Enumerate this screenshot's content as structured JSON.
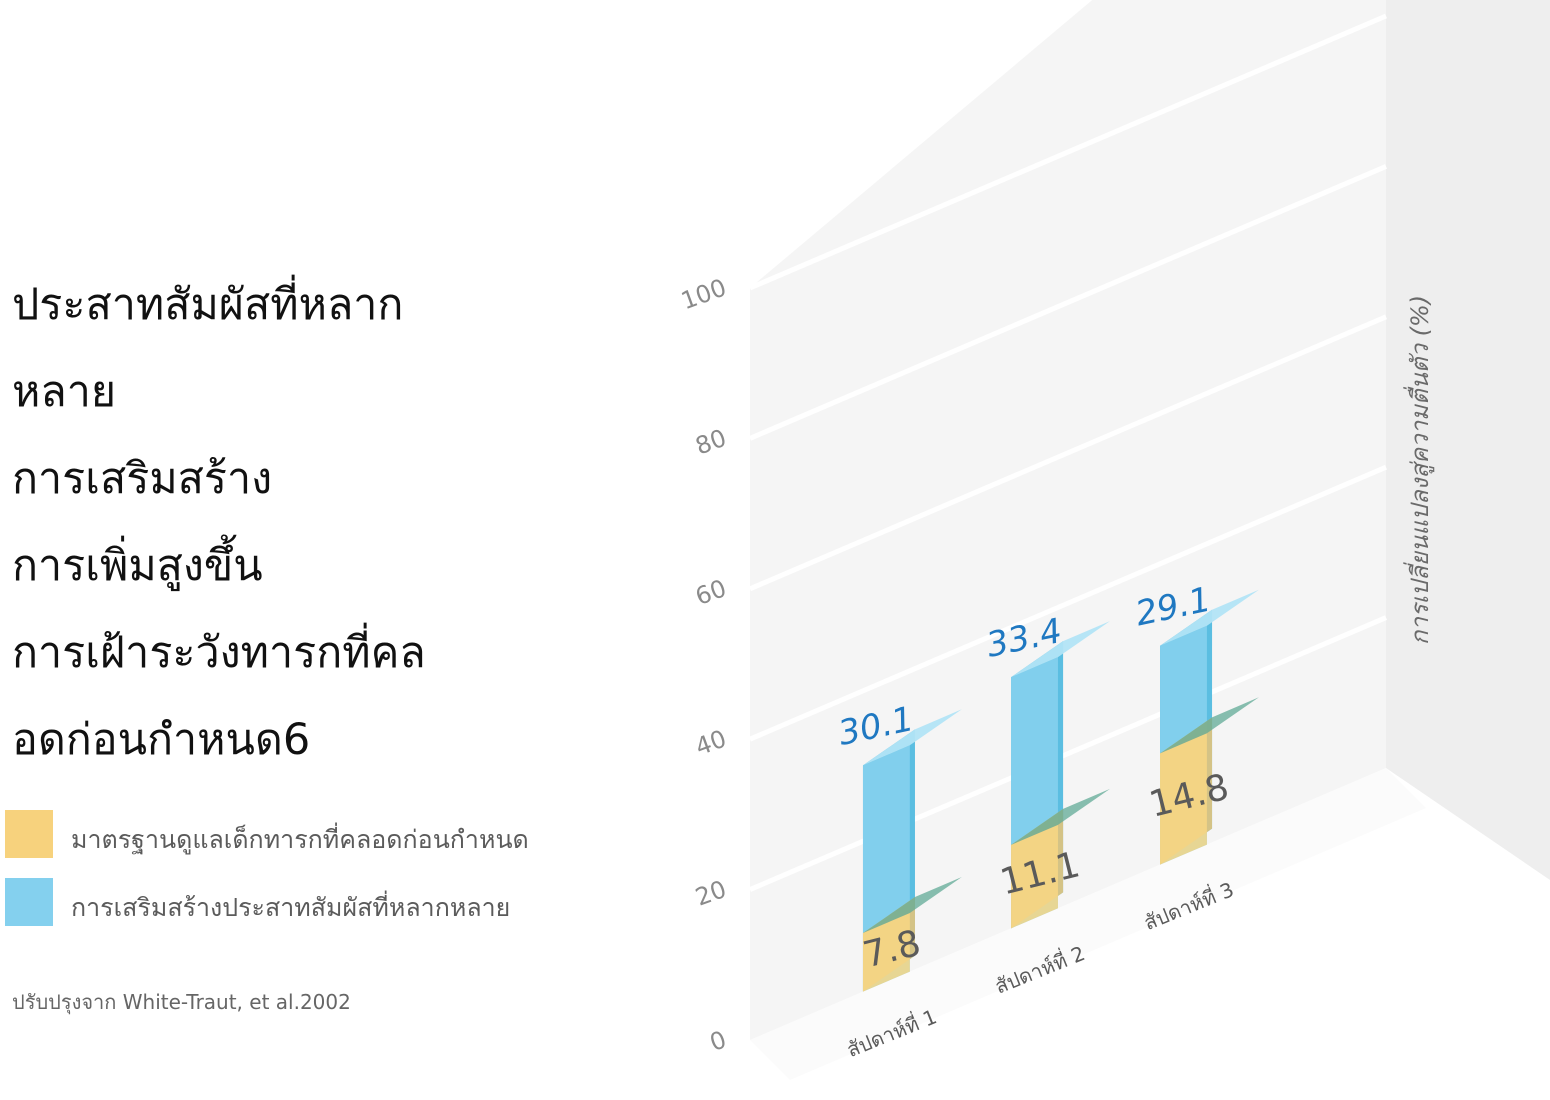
{
  "title_lines": [
    "ประสาทสัมผัสที่หลาก",
    "หลาย",
    "การเสริมสร้าง",
    "การเพิ่มสูงขึ้น",
    "การเฝ้าระวังทารกที่คล",
    "อดก่อนกำหนด6"
  ],
  "legend": [
    {
      "label": "มาตรฐานดูแลเด็กทารกที่คลอดก่อนกำหนด",
      "color": "#f7d27d"
    },
    {
      "label": "การเสริมสร้างประสาทสัมผัสที่หลากหลาย",
      "color": "#84d0ee"
    }
  ],
  "source": "ปรับปรุงจาก White-Traut, et al.2002",
  "chart_data": {
    "type": "bar",
    "stacked": false,
    "categories": [
      "สัปดาห์ที่ 1",
      "สัปดาห์ที่ 2",
      "สัปดาห์ที่ 3"
    ],
    "series": [
      {
        "name": "มาตรฐานดูแลเด็กทารกที่คลอดก่อนกำหนด",
        "values": [
          7.8,
          11.1,
          14.8
        ],
        "color": "#f7d27d"
      },
      {
        "name": "การเสริมสร้างประสาทสัมผัสที่หลากหลาย",
        "values": [
          30.1,
          33.4,
          29.1
        ],
        "color": "#84d0ee"
      }
    ],
    "ylabel": "การเปลี่ยนแปลงสู่ความตื่นตัว (%)",
    "yticks": [
      0,
      20,
      40,
      60,
      80,
      100
    ],
    "ylim": [
      0,
      100
    ],
    "grid": true,
    "label_colors": {
      "series_0": "#5a5a5a",
      "series_1": "#1f78c1"
    }
  }
}
